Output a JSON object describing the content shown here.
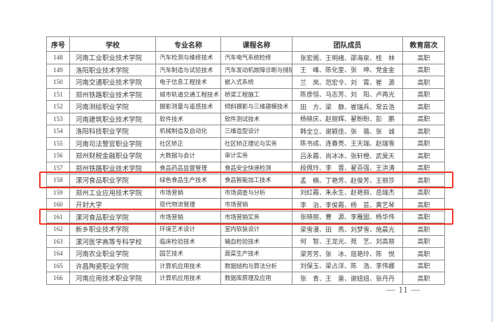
{
  "page": {
    "page_number": "— 11 —"
  },
  "colors": {
    "highlight_box": "#f13426",
    "grid_line": "#8c8c8c",
    "text": "#3e3e3e"
  },
  "table": {
    "headers": [
      "序号",
      "学校",
      "专业名称",
      "课程名称",
      "团队成员",
      "教育层次"
    ],
    "rows": [
      {
        "no": "148",
        "school": "河南工业职业技术学院",
        "major": "汽车检测与维修技术",
        "course": "汽车电气系统检修",
        "team": "张宏阁、王明绪、邵海泉、桂　林",
        "level": "高职",
        "highlighted": false
      },
      {
        "no": "149",
        "school": "洛阳职业技术学院",
        "major": "汽车制造与试验技术",
        "course": "汽车发动机故障诊断与排除",
        "team": "王　峰、陈化奎、张　坤、党金金",
        "level": "高职",
        "highlighted": false
      },
      {
        "no": "150",
        "school": "河南交通职业技术学院",
        "major": "电子信息工程技术",
        "course": "嵌入式系统",
        "team": "兰　岚、范宏令、刘　霄、崔　源",
        "level": "高职",
        "highlighted": false
      },
      {
        "no": "151",
        "school": "郑州铁路职业技术学院",
        "major": "城市轨道交通工程技术",
        "course": "桥梁工程施工",
        "team": "陈彦恒、马志芳、刘　阳、卢再光",
        "level": "高职",
        "highlighted": false
      },
      {
        "no": "152",
        "school": "河南测绘职业学院",
        "major": "摄影测量与遥感技术",
        "course": "倾斜摄影与三维建模技术",
        "team": "田　方、梁　静、崔瑞兵、常云浩",
        "level": "高职",
        "highlighted": false
      },
      {
        "no": "153",
        "school": "河南建筑职业技术学院",
        "major": "软件技术",
        "course": "软件测试技术",
        "team": "杨晓庆、赵丽辉、翟盼盼、彭　鹏",
        "level": "高职",
        "highlighted": false
      },
      {
        "no": "154",
        "school": "洛阳科技职业学院",
        "major": "机械制造及自动化",
        "course": "三维造型设计",
        "team": "韩全立、谢颖佳、张　蓓、张　诚",
        "level": "高职",
        "highlighted": false
      },
      {
        "no": "155",
        "school": "河南司法警官职业学院",
        "major": "社区矫正",
        "course": "社区矫正理论与实务",
        "team": "陈书成、连春亮、王天瑞、赵瑞雪",
        "level": "高职",
        "highlighted": false
      },
      {
        "no": "156",
        "school": "郑州财税金融职业学院",
        "major": "大数据与会计",
        "course": "审计实务",
        "team": "吕永霞、尚冰冰、张轩橙、武昊天",
        "level": "高职",
        "highlighted": false
      },
      {
        "no": "157",
        "school": "郑州铁路职业技术学院",
        "major": "食品药品监督管理",
        "course": "食品安全快速检测",
        "team": "段佩玲、李　晋、翟百强、王洪涛",
        "level": "高职",
        "highlighted": false
      },
      {
        "no": "158",
        "school": "漯河食品职业学院",
        "major": "绿色食品生产技术",
        "course": "食品智能加工技术",
        "team": "孟　楠、丁艳芳、赵俊芳、王丽莎",
        "level": "高职",
        "highlighted": true
      },
      {
        "no": "159",
        "school": "郑州工业应用技术学院",
        "major": "市场营销",
        "course": "市场调查与分析",
        "team": "刘红霞、朱永生、赵艳丽、岳瑞杰",
        "level": "高职",
        "highlighted": false
      },
      {
        "no": "160",
        "school": "开封大学",
        "major": "现代物流管理",
        "course": "市场营销",
        "team": "李　治、李俊霞、杨　芸、黄艺琴",
        "level": "高职",
        "highlighted": false
      },
      {
        "no": "161",
        "school": "漯河食品职业学院",
        "major": "市场营销",
        "course": "市场营销实务",
        "team": "张晓丽、曹　源、李雁囡、杨华伟",
        "level": "高职",
        "highlighted": true
      },
      {
        "no": "162",
        "school": "新乡职业技术学院",
        "major": "环境艺术设计",
        "course": "室内软装设计",
        "team": "梁雪漫、田　燕、刘梦雪、施晨光",
        "level": "高职",
        "highlighted": false
      },
      {
        "no": "163",
        "school": "漯河医学高等专科学校",
        "major": "临床检验技术",
        "course": "输血检验技术",
        "team": "何　智、王龙光、苑　艺、刘高丽",
        "level": "高职",
        "highlighted": false
      },
      {
        "no": "164",
        "school": "河南农业职业学院",
        "major": "园艺技术",
        "course": "蔬菜生产技术",
        "team": "梁芳芳、张　冰、寇艳玲、陈　悦",
        "level": "高职",
        "highlighted": false
      },
      {
        "no": "165",
        "school": "许昌陶瓷职业学院",
        "major": "计算机应用技术",
        "course": "数据结构与算法分析",
        "team": "刘保玉、梁占洋、陈　浩、李伟娜",
        "level": "高职",
        "highlighted": false
      },
      {
        "no": "166",
        "school": "河南应用技术职业学院",
        "major": "计算机应用技术",
        "course": "数据库原理及应用",
        "team": "张　青、王　雷、谢妞妞、张丹丹",
        "level": "高职",
        "highlighted": false
      }
    ]
  }
}
